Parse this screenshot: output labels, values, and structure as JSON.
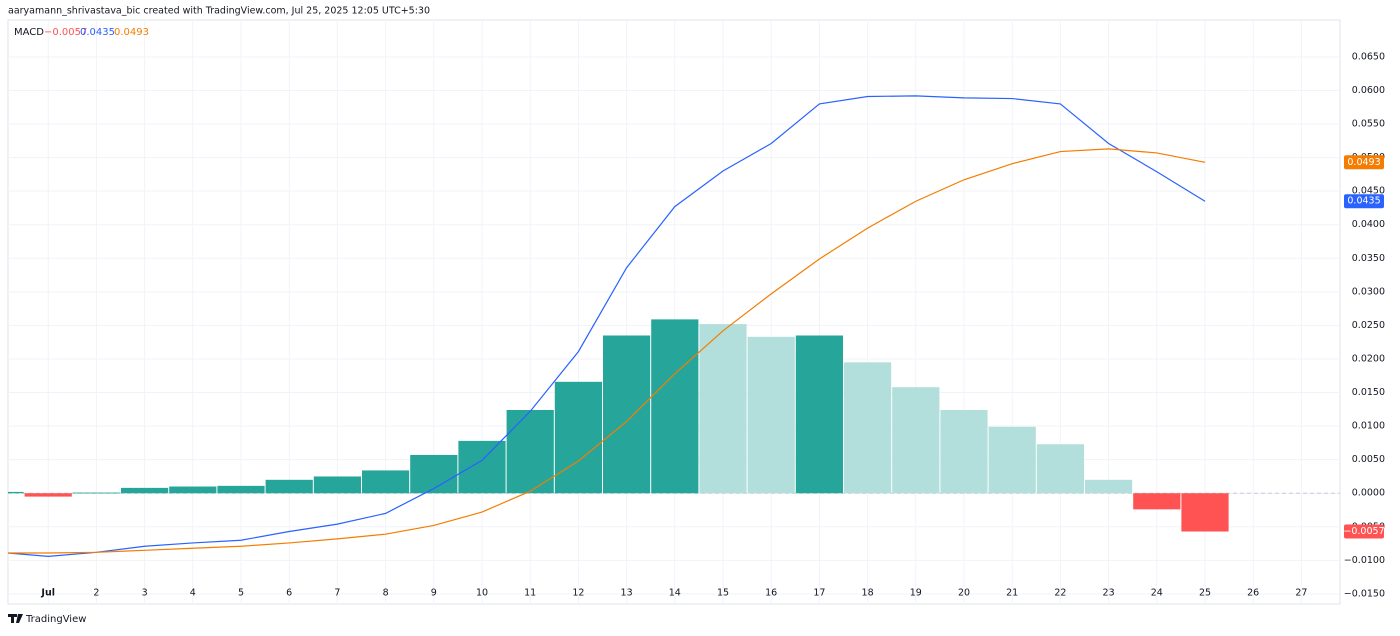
{
  "header": {
    "credit": "aaryamann_shrivastava_bic created with TradingView.com, Jul 25, 2025 12:05 UTC+5:30"
  },
  "footer": {
    "brand": "TradingView"
  },
  "chart_data": {
    "type": "combo",
    "legend": {
      "name": "MACD",
      "labels": [
        "−0.0057",
        "0.0435",
        "0.0493"
      ]
    },
    "categories": [
      null,
      "Jul",
      "2",
      "3",
      "4",
      "5",
      "6",
      "7",
      "8",
      "9",
      "10",
      "11",
      "12",
      "13",
      "14",
      "15",
      "16",
      "17",
      "18",
      "19",
      "20",
      "21",
      "22",
      "23",
      "24",
      "25",
      "26",
      "27"
    ],
    "series": [
      {
        "type": "bar",
        "color": "#ff5252",
        "values": [
          0.0002,
          -0.0005,
          0.0001,
          0.0008,
          0.001,
          0.0011,
          0.002,
          0.0025,
          0.0034,
          0.0057,
          0.0078,
          0.0124,
          0.0166,
          0.0235,
          0.0259,
          0.0252,
          0.0233,
          0.0235,
          0.0195,
          0.0158,
          0.0124,
          0.0099,
          0.0073,
          0.002,
          -0.0024,
          -0.0057,
          null,
          null
        ],
        "colors": [
          "#26a69a",
          "#ff5252",
          "#26a69a",
          "#26a69a",
          "#26a69a",
          "#26a69a",
          "#26a69a",
          "#26a69a",
          "#26a69a",
          "#26a69a",
          "#26a69a",
          "#26a69a",
          "#26a69a",
          "#26a69a",
          "#26a69a",
          "#b2dfdb",
          "#b2dfdb",
          "#26a69a",
          "#b2dfdb",
          "#b2dfdb",
          "#b2dfdb",
          "#b2dfdb",
          "#b2dfdb",
          "#b2dfdb",
          "#ff5252",
          "#ff5252",
          null,
          null
        ]
      },
      {
        "type": "line",
        "color": "#2962ff",
        "values": [
          -0.0088,
          -0.0094,
          -0.0088,
          -0.0079,
          -0.0074,
          -0.007,
          -0.0057,
          -0.0046,
          -0.003,
          0.0007,
          0.0049,
          0.0122,
          0.0211,
          0.0336,
          0.0427,
          0.048,
          0.0521,
          0.058,
          0.0591,
          0.0592,
          0.0589,
          0.0588,
          0.058,
          0.0521,
          0.0479,
          0.0435,
          null,
          null
        ]
      },
      {
        "type": "line",
        "color": "#f57c00",
        "values": [
          -0.0089,
          -0.0089,
          -0.0088,
          -0.0085,
          -0.0082,
          -0.0079,
          -0.0074,
          -0.0068,
          -0.0061,
          -0.0048,
          -0.0028,
          0.0003,
          0.0048,
          0.0107,
          0.0178,
          0.0242,
          0.0297,
          0.0349,
          0.0395,
          0.0435,
          0.0467,
          0.0491,
          0.0509,
          0.0513,
          0.0507,
          0.0493,
          null,
          null
        ]
      }
    ],
    "ylim": [
      -0.0165,
      0.0705
    ],
    "yticks": [
      {
        "value": 0.065,
        "label": "0.0650"
      },
      {
        "value": 0.06,
        "label": "0.0600"
      },
      {
        "value": 0.055,
        "label": "0.0550"
      },
      {
        "value": 0.05,
        "label": "0.0500"
      },
      {
        "value": 0.045,
        "label": "0.0450"
      },
      {
        "value": 0.04,
        "label": "0.0400"
      },
      {
        "value": 0.035,
        "label": "0.0350"
      },
      {
        "value": 0.03,
        "label": "0.0300"
      },
      {
        "value": 0.025,
        "label": "0.0250"
      },
      {
        "value": 0.02,
        "label": "0.0200"
      },
      {
        "value": 0.015,
        "label": "0.0150"
      },
      {
        "value": 0.01,
        "label": "0.0100"
      },
      {
        "value": 0.005,
        "label": "0.0050"
      },
      {
        "value": 0,
        "label": "0.0000"
      },
      {
        "value": -0.005,
        "label": "−0.0050"
      },
      {
        "value": -0.01,
        "label": "−0.0100"
      },
      {
        "value": -0.015,
        "label": "−0.0150"
      }
    ],
    "grid": true
  }
}
